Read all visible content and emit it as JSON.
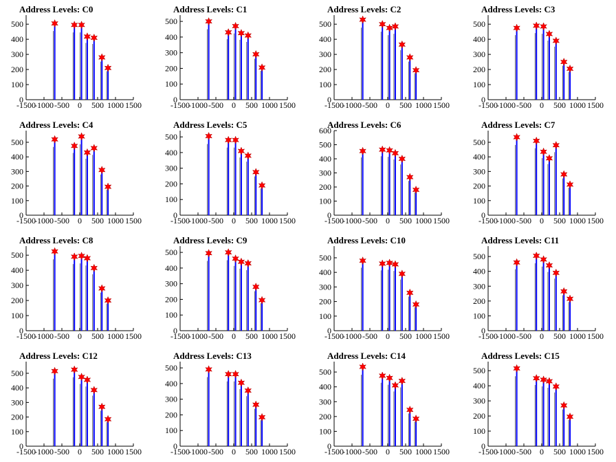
{
  "chart_data": [
    {
      "type": "bar",
      "title": "Address Levels: C0",
      "xlim": [
        -1500,
        1500
      ],
      "ylim": [
        0,
        560
      ],
      "yticks": [
        0,
        100,
        200,
        300,
        400,
        500
      ],
      "xticks": [
        -1500,
        -1000,
        -500,
        0,
        500,
        1000,
        1500
      ],
      "stars": [
        {
          "x": -700,
          "y": 505
        },
        {
          "x": -150,
          "y": 495
        },
        {
          "x": 50,
          "y": 495
        },
        {
          "x": 210,
          "y": 418
        },
        {
          "x": 400,
          "y": 410
        },
        {
          "x": 620,
          "y": 280
        },
        {
          "x": 790,
          "y": 210
        }
      ]
    },
    {
      "type": "bar",
      "title": "Address Levels: C1",
      "xlim": [
        -1500,
        1500
      ],
      "ylim": [
        0,
        540
      ],
      "yticks": [
        0,
        100,
        200,
        300,
        400,
        500
      ],
      "xticks": [
        -1500,
        -1000,
        -500,
        0,
        500,
        1000,
        1500
      ],
      "stars": [
        {
          "x": -700,
          "y": 500
        },
        {
          "x": -150,
          "y": 430
        },
        {
          "x": 50,
          "y": 470
        },
        {
          "x": 210,
          "y": 425
        },
        {
          "x": 400,
          "y": 410
        },
        {
          "x": 620,
          "y": 290
        },
        {
          "x": 790,
          "y": 205
        }
      ]
    },
    {
      "type": "bar",
      "title": "Address Levels: C2",
      "xlim": [
        -1500,
        1500
      ],
      "ylim": [
        0,
        560
      ],
      "yticks": [
        0,
        100,
        200,
        300,
        400,
        500
      ],
      "xticks": [
        -1500,
        -1000,
        -500,
        0,
        500,
        1000,
        1500
      ],
      "stars": [
        {
          "x": -700,
          "y": 530
        },
        {
          "x": -150,
          "y": 500
        },
        {
          "x": 50,
          "y": 475
        },
        {
          "x": 210,
          "y": 485
        },
        {
          "x": 400,
          "y": 365
        },
        {
          "x": 620,
          "y": 280
        },
        {
          "x": 790,
          "y": 195
        }
      ]
    },
    {
      "type": "bar",
      "title": "Address Levels: C3",
      "xlim": [
        -1500,
        1500
      ],
      "ylim": [
        0,
        560
      ],
      "yticks": [
        0,
        100,
        200,
        300,
        400,
        500
      ],
      "xticks": [
        -1500,
        -1000,
        -500,
        0,
        500,
        1000,
        1500
      ],
      "stars": [
        {
          "x": -700,
          "y": 475
        },
        {
          "x": -150,
          "y": 490
        },
        {
          "x": 50,
          "y": 485
        },
        {
          "x": 210,
          "y": 435
        },
        {
          "x": 400,
          "y": 390
        },
        {
          "x": 620,
          "y": 250
        },
        {
          "x": 790,
          "y": 205
        }
      ]
    },
    {
      "type": "bar",
      "title": "Address Levels: C4",
      "xlim": [
        -1500,
        1500
      ],
      "ylim": [
        0,
        580
      ],
      "yticks": [
        0,
        100,
        200,
        300,
        400,
        500
      ],
      "xticks": [
        -1500,
        -1000,
        -500,
        0,
        500,
        1000,
        1500
      ],
      "stars": [
        {
          "x": -700,
          "y": 520
        },
        {
          "x": -150,
          "y": 475
        },
        {
          "x": 50,
          "y": 540
        },
        {
          "x": 210,
          "y": 430
        },
        {
          "x": 400,
          "y": 460
        },
        {
          "x": 620,
          "y": 310
        },
        {
          "x": 790,
          "y": 195
        }
      ]
    },
    {
      "type": "bar",
      "title": "Address Levels: C5",
      "xlim": [
        -1500,
        1500
      ],
      "ylim": [
        0,
        540
      ],
      "yticks": [
        0,
        100,
        200,
        300,
        400,
        500
      ],
      "xticks": [
        -1500,
        -1000,
        -500,
        0,
        500,
        1000,
        1500
      ],
      "stars": [
        {
          "x": -700,
          "y": 505
        },
        {
          "x": -150,
          "y": 480
        },
        {
          "x": 50,
          "y": 480
        },
        {
          "x": 210,
          "y": 410
        },
        {
          "x": 400,
          "y": 380
        },
        {
          "x": 620,
          "y": 275
        },
        {
          "x": 790,
          "y": 190
        }
      ]
    },
    {
      "type": "bar",
      "title": "Address Levels: C6",
      "xlim": [
        -1500,
        1500
      ],
      "ylim": [
        0,
        600
      ],
      "yticks": [
        0,
        100,
        200,
        300,
        400,
        500,
        600
      ],
      "xticks": [
        -1500,
        -1000,
        -500,
        0,
        500,
        1000,
        1500
      ],
      "stars": [
        {
          "x": -700,
          "y": 455
        },
        {
          "x": -150,
          "y": 465
        },
        {
          "x": 50,
          "y": 460
        },
        {
          "x": 210,
          "y": 440
        },
        {
          "x": 400,
          "y": 400
        },
        {
          "x": 620,
          "y": 270
        },
        {
          "x": 790,
          "y": 180
        }
      ]
    },
    {
      "type": "bar",
      "title": "Address Levels: C7",
      "xlim": [
        -1500,
        1500
      ],
      "ylim": [
        0,
        580
      ],
      "yticks": [
        0,
        100,
        200,
        300,
        400,
        500
      ],
      "xticks": [
        -1500,
        -1000,
        -500,
        0,
        500,
        1000,
        1500
      ],
      "stars": [
        {
          "x": -700,
          "y": 535
        },
        {
          "x": -150,
          "y": 510
        },
        {
          "x": 50,
          "y": 435
        },
        {
          "x": 210,
          "y": 390
        },
        {
          "x": 400,
          "y": 480
        },
        {
          "x": 620,
          "y": 280
        },
        {
          "x": 790,
          "y": 210
        }
      ]
    },
    {
      "type": "bar",
      "title": "Address Levels: C8",
      "xlim": [
        -1500,
        1500
      ],
      "ylim": [
        0,
        560
      ],
      "yticks": [
        0,
        100,
        200,
        300,
        400,
        500
      ],
      "xticks": [
        -1500,
        -1000,
        -500,
        0,
        500,
        1000,
        1500
      ],
      "stars": [
        {
          "x": -700,
          "y": 525
        },
        {
          "x": -150,
          "y": 490
        },
        {
          "x": 50,
          "y": 495
        },
        {
          "x": 210,
          "y": 480
        },
        {
          "x": 400,
          "y": 415
        },
        {
          "x": 620,
          "y": 280
        },
        {
          "x": 790,
          "y": 200
        }
      ]
    },
    {
      "type": "bar",
      "title": "Address Levels: C9",
      "xlim": [
        -1500,
        1500
      ],
      "ylim": [
        0,
        540
      ],
      "yticks": [
        0,
        100,
        200,
        300,
        400,
        500
      ],
      "xticks": [
        -1500,
        -1000,
        -500,
        0,
        500,
        1000,
        1500
      ],
      "stars": [
        {
          "x": -700,
          "y": 495
        },
        {
          "x": -150,
          "y": 500
        },
        {
          "x": 50,
          "y": 460
        },
        {
          "x": 210,
          "y": 440
        },
        {
          "x": 400,
          "y": 430
        },
        {
          "x": 620,
          "y": 280
        },
        {
          "x": 790,
          "y": 195
        }
      ]
    },
    {
      "type": "bar",
      "title": "Address Levels: C10",
      "xlim": [
        -1500,
        1500
      ],
      "ylim": [
        0,
        580
      ],
      "yticks": [
        0,
        100,
        200,
        300,
        400,
        500
      ],
      "xticks": [
        -1500,
        -1000,
        -500,
        0,
        500,
        1000,
        1500
      ],
      "stars": [
        {
          "x": -700,
          "y": 480
        },
        {
          "x": -150,
          "y": 460
        },
        {
          "x": 50,
          "y": 465
        },
        {
          "x": 210,
          "y": 455
        },
        {
          "x": 400,
          "y": 390
        },
        {
          "x": 620,
          "y": 260
        },
        {
          "x": 790,
          "y": 180
        }
      ]
    },
    {
      "type": "bar",
      "title": "Address Levels: C11",
      "xlim": [
        -1500,
        1500
      ],
      "ylim": [
        0,
        570
      ],
      "yticks": [
        0,
        100,
        200,
        300,
        400,
        500
      ],
      "xticks": [
        -1500,
        -1000,
        -500,
        0,
        500,
        1000,
        1500
      ],
      "stars": [
        {
          "x": -700,
          "y": 460
        },
        {
          "x": -150,
          "y": 505
        },
        {
          "x": 50,
          "y": 480
        },
        {
          "x": 210,
          "y": 440
        },
        {
          "x": 400,
          "y": 390
        },
        {
          "x": 620,
          "y": 265
        },
        {
          "x": 790,
          "y": 215
        }
      ]
    },
    {
      "type": "bar",
      "title": "Address Levels: C12",
      "xlim": [
        -1500,
        1500
      ],
      "ylim": [
        0,
        580
      ],
      "yticks": [
        0,
        100,
        200,
        300,
        400,
        500
      ],
      "xticks": [
        -1500,
        -1000,
        -500,
        0,
        500,
        1000,
        1500
      ],
      "stars": [
        {
          "x": -700,
          "y": 515
        },
        {
          "x": -150,
          "y": 525
        },
        {
          "x": 50,
          "y": 475
        },
        {
          "x": 210,
          "y": 455
        },
        {
          "x": 400,
          "y": 385
        },
        {
          "x": 620,
          "y": 270
        },
        {
          "x": 790,
          "y": 185
        }
      ]
    },
    {
      "type": "bar",
      "title": "Address Levels: C13",
      "xlim": [
        -1500,
        1500
      ],
      "ylim": [
        0,
        540
      ],
      "yticks": [
        0,
        100,
        200,
        300,
        400,
        500
      ],
      "xticks": [
        -1500,
        -1000,
        -500,
        0,
        500,
        1000,
        1500
      ],
      "stars": [
        {
          "x": -700,
          "y": 490
        },
        {
          "x": -150,
          "y": 460
        },
        {
          "x": 50,
          "y": 460
        },
        {
          "x": 210,
          "y": 405
        },
        {
          "x": 400,
          "y": 355
        },
        {
          "x": 620,
          "y": 265
        },
        {
          "x": 790,
          "y": 185
        }
      ]
    },
    {
      "type": "bar",
      "title": "Address Levels: C14",
      "xlim": [
        -1500,
        1500
      ],
      "ylim": [
        0,
        570
      ],
      "yticks": [
        0,
        100,
        200,
        300,
        400,
        500
      ],
      "xticks": [
        -1500,
        -1000,
        -500,
        0,
        500,
        1000,
        1500
      ],
      "stars": [
        {
          "x": -700,
          "y": 535
        },
        {
          "x": -150,
          "y": 475
        },
        {
          "x": 50,
          "y": 460
        },
        {
          "x": 210,
          "y": 410
        },
        {
          "x": 400,
          "y": 440
        },
        {
          "x": 620,
          "y": 245
        },
        {
          "x": 790,
          "y": 185
        }
      ]
    },
    {
      "type": "bar",
      "title": "Address Levels: C15",
      "xlim": [
        -1500,
        1500
      ],
      "ylim": [
        0,
        560
      ],
      "yticks": [
        0,
        100,
        200,
        300,
        400,
        500
      ],
      "xticks": [
        -1500,
        -1000,
        -500,
        0,
        500,
        1000,
        1500
      ],
      "stars": [
        {
          "x": -700,
          "y": 515
        },
        {
          "x": -150,
          "y": 450
        },
        {
          "x": 50,
          "y": 440
        },
        {
          "x": 210,
          "y": 430
        },
        {
          "x": 400,
          "y": 395
        },
        {
          "x": 620,
          "y": 270
        },
        {
          "x": 790,
          "y": 195
        }
      ]
    }
  ],
  "colors": {
    "bar": "#0000ff",
    "star": "#ff0000",
    "axis": "#000000"
  }
}
